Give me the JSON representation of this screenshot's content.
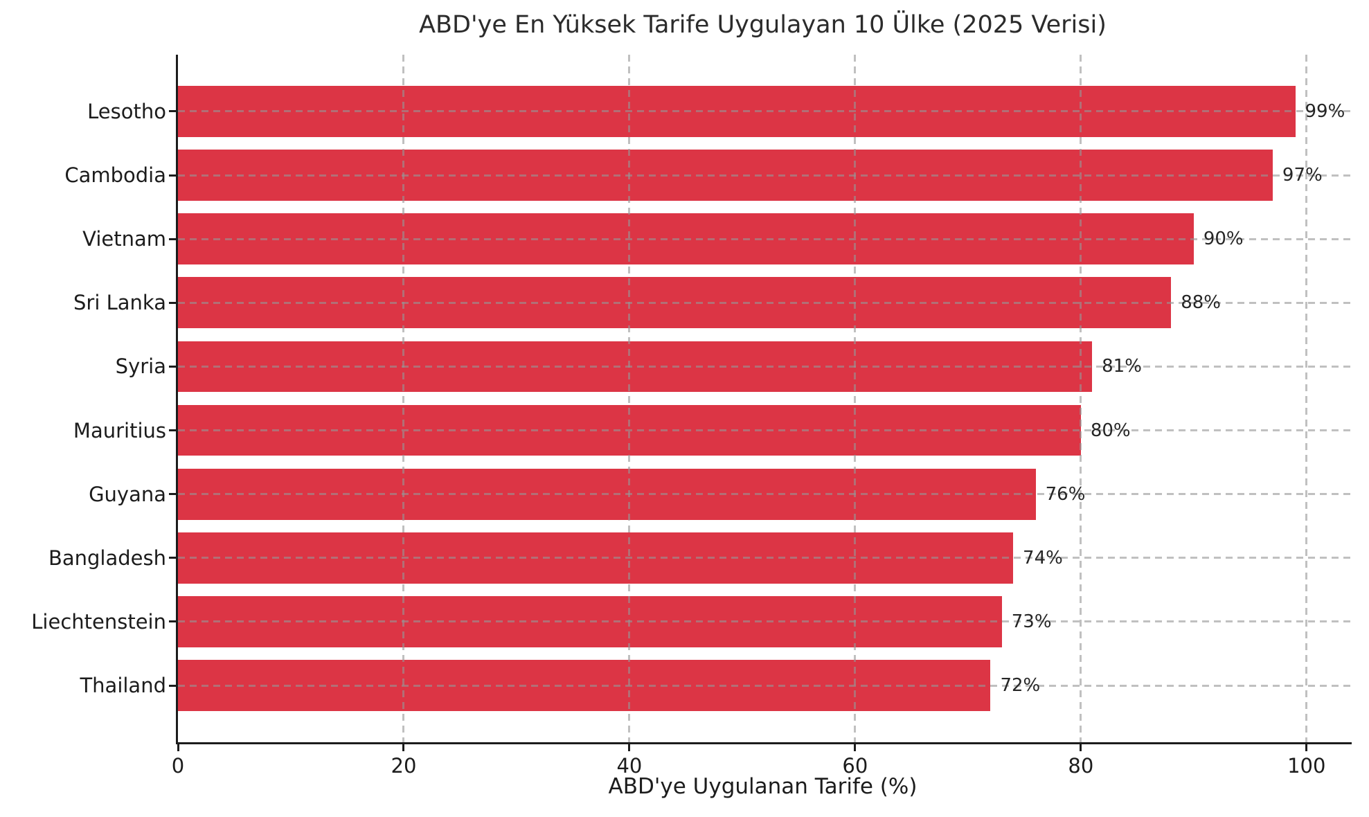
{
  "chart_data": {
    "type": "bar",
    "orientation": "horizontal",
    "title": "ABD'ye En Yüksek Tarife Uygulayan 10 Ülke (2025 Verisi)",
    "xlabel": "ABD'ye Uygulanan Tarife (%)",
    "ylabel": "",
    "categories": [
      "Lesotho",
      "Cambodia",
      "Vietnam",
      "Sri Lanka",
      "Syria",
      "Mauritius",
      "Guyana",
      "Bangladesh",
      "Liechtenstein",
      "Thailand"
    ],
    "values": [
      99,
      97,
      90,
      88,
      81,
      80,
      76,
      74,
      73,
      72
    ],
    "value_labels": [
      "99%",
      "97%",
      "90%",
      "88%",
      "81%",
      "80%",
      "76%",
      "74%",
      "73%",
      "72%"
    ],
    "x_ticks": [
      0,
      20,
      40,
      60,
      80,
      100
    ],
    "x_tick_labels": [
      "0",
      "20",
      "40",
      "60",
      "80",
      "100"
    ],
    "xlim": [
      0,
      104
    ],
    "grid": true,
    "legend": "none",
    "bar_color": "#DC3545",
    "grid_color": "#969696",
    "axis_color": "#1c1c1c",
    "text_color": "#1c1c1c"
  }
}
